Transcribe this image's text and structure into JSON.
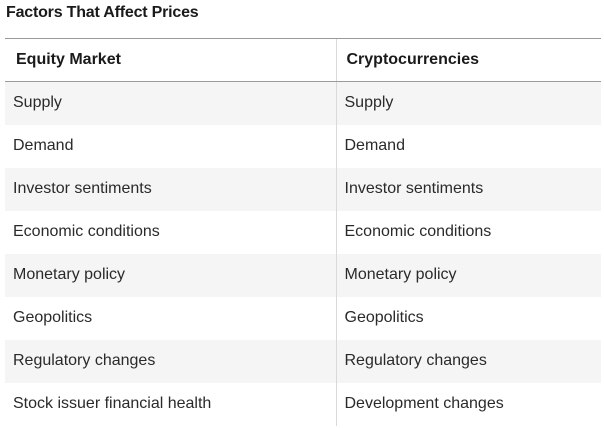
{
  "caption": "Factors That Affect Prices",
  "table": {
    "headers": [
      "Equity Market",
      "Cryptocurrencies"
    ],
    "rows": [
      [
        "Supply",
        "Supply"
      ],
      [
        "Demand",
        "Demand"
      ],
      [
        "Investor sentiments",
        "Investor sentiments"
      ],
      [
        "Economic conditions",
        "Economic conditions"
      ],
      [
        "Monetary policy",
        "Monetary policy"
      ],
      [
        "Geopolitics",
        "Geopolitics"
      ],
      [
        "Regulatory changes",
        "Regulatory changes"
      ],
      [
        "Stock issuer financial health",
        "Development changes"
      ]
    ]
  },
  "colors": {
    "row_shade": "#f5f5f5",
    "rule": "#9a9a9a",
    "column_divider": "#d9d9d9"
  }
}
